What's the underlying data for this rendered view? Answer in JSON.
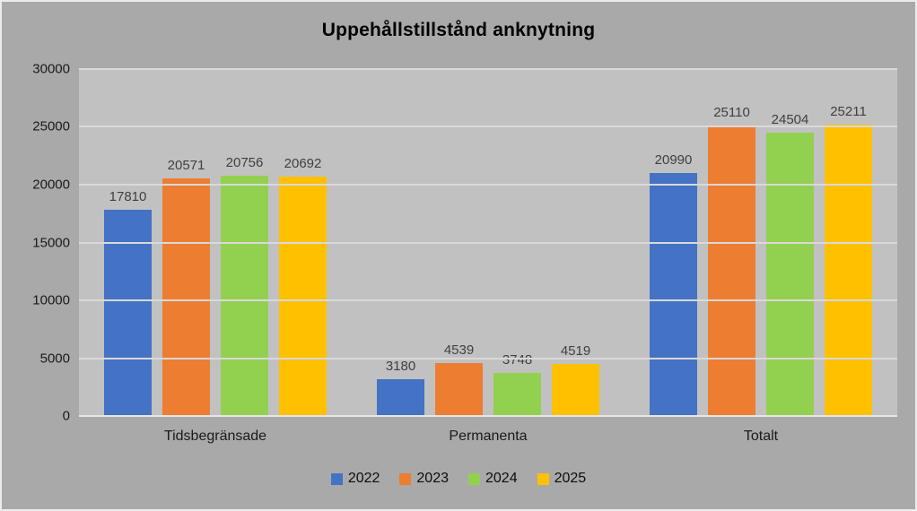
{
  "title": "Uppehållstillstånd anknytning",
  "colors": {
    "background": "#a9a9a9",
    "plot_background": "#c1c1c1",
    "gridline": "#d9d9d9",
    "axis_line": "#e6e6e6",
    "data_label": "#404040",
    "tick_label": "#1a1a1a"
  },
  "chart_data": {
    "type": "bar",
    "title": "Uppehållstillstånd anknytning",
    "categories": [
      "Tidsbegränsade",
      "Permanenta",
      "Totalt"
    ],
    "series": [
      {
        "name": "2022",
        "color": "#4472c4",
        "values": [
          17810,
          3180,
          20990
        ]
      },
      {
        "name": "2023",
        "color": "#ed7d31",
        "values": [
          20571,
          4539,
          25110
        ]
      },
      {
        "name": "2024",
        "color": "#92d050",
        "values": [
          20756,
          3748,
          24504
        ]
      },
      {
        "name": "2025",
        "color": "#ffc000",
        "values": [
          20692,
          4519,
          25211
        ]
      }
    ],
    "xlabel": "",
    "ylabel": "",
    "ylim": [
      0,
      30000
    ],
    "yticks": [
      0,
      5000,
      10000,
      15000,
      20000,
      25000,
      30000
    ],
    "grid": true,
    "legend_position": "bottom",
    "data_labels": true
  }
}
